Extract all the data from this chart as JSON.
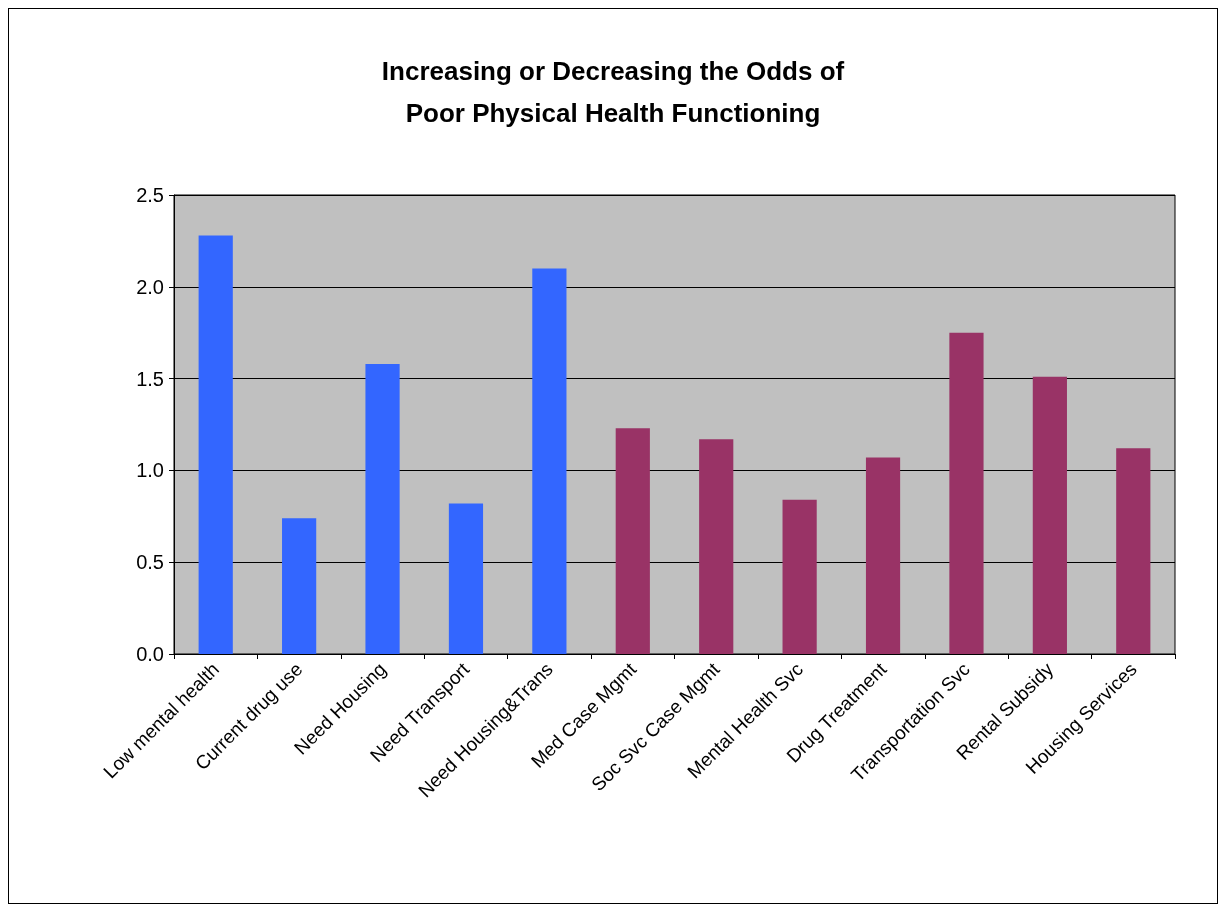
{
  "chart_data": {
    "type": "bar",
    "title": "Increasing or Decreasing the Odds of\nPoor Physical Health Functioning",
    "categories": [
      "Low mental health",
      "Current drug use",
      "Need Housing",
      "Need Transport",
      "Need Housing&Trans",
      "Med Case Mgmt",
      "Soc Svc Case Mgmt",
      "Mental Health Svc",
      "Drug Treatment",
      "Transportation Svc",
      "Rental Subsidy",
      "Housing Services"
    ],
    "values": [
      2.28,
      0.74,
      1.58,
      0.82,
      2.1,
      1.23,
      1.17,
      0.84,
      1.07,
      1.75,
      1.51,
      1.12
    ],
    "colors": [
      "#3366ff",
      "#3366ff",
      "#3366ff",
      "#3366ff",
      "#3366ff",
      "#993366",
      "#993366",
      "#993366",
      "#993366",
      "#993366",
      "#993366",
      "#993366"
    ],
    "ylim": [
      0,
      2.5
    ],
    "yticks": [
      {
        "value": 0,
        "label": "0.0"
      },
      0.5,
      {
        "value": 1,
        "label": "1.0"
      },
      1.5,
      {
        "value": 2,
        "label": "2.0"
      },
      2.5
    ],
    "grid": "y"
  }
}
